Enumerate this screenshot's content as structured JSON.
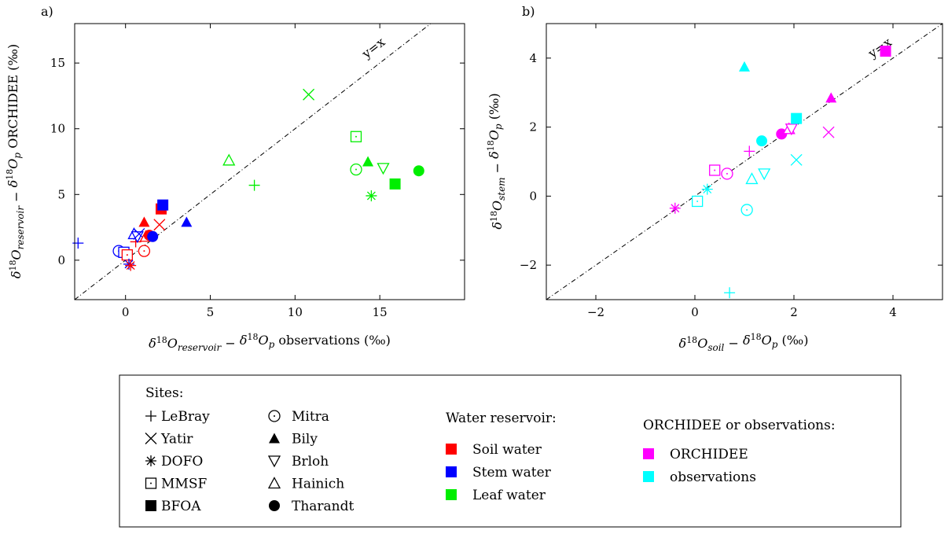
{
  "colors": {
    "soil": "#ff0000",
    "stem": "#0000ff",
    "leaf": "#00ee00",
    "orchidee": "#ff00ff",
    "observations": "#00ffff"
  },
  "legend": {
    "sites_title": "Sites:",
    "sites": [
      {
        "name": "LeBray",
        "marker": "plus"
      },
      {
        "name": "Yatir",
        "marker": "cross"
      },
      {
        "name": "DOFO",
        "marker": "star"
      },
      {
        "name": "MMSF",
        "marker": "square-dot"
      },
      {
        "name": "BFOA",
        "marker": "square-filled"
      },
      {
        "name": "Mitra",
        "marker": "circle-dot"
      },
      {
        "name": "Bily",
        "marker": "triangle-filled"
      },
      {
        "name": "Brloh",
        "marker": "triangle-down-open"
      },
      {
        "name": "Hainich",
        "marker": "triangle-open"
      },
      {
        "name": "Tharandt",
        "marker": "circle-filled"
      }
    ],
    "reservoir_title": "Water reservoir:",
    "reservoirs": [
      {
        "label": "Soil water",
        "color": "#ff0000"
      },
      {
        "label": "Stem water",
        "color": "#0000ff"
      },
      {
        "label": "Leaf water",
        "color": "#00ee00"
      }
    ],
    "source_title": "ORCHIDEE or observations:",
    "sources": [
      {
        "label": "ORCHIDEE",
        "color": "#ff00ff"
      },
      {
        "label": "observations",
        "color": "#00ffff"
      }
    ]
  },
  "chart_data": [
    {
      "panel": "a)",
      "type": "scatter",
      "xlabel": "δ18Oreservoir − δ18Op observations (‰)",
      "ylabel": "δ18Oreservoir − δ18Op ORCHIDEE (‰)",
      "xlim": [
        -3,
        20
      ],
      "ylim": [
        -3,
        18
      ],
      "xticks": [
        0,
        5,
        10,
        15
      ],
      "yticks": [
        0,
        5,
        10,
        15
      ],
      "xtick_labels": [
        "0",
        "5",
        "10",
        "15"
      ],
      "ytick_labels": [
        "0",
        "5",
        "10",
        "15"
      ],
      "reference_line_label": "y=x",
      "points": [
        {
          "site": "LeBray",
          "reservoir": "stem",
          "x": -2.8,
          "y": 1.3
        },
        {
          "site": "Mitra",
          "reservoir": "stem",
          "x": -0.4,
          "y": 0.7
        },
        {
          "site": "MMSF",
          "reservoir": "stem",
          "x": -0.1,
          "y": 0.6
        },
        {
          "site": "MMSF",
          "reservoir": "soil",
          "x": 0.1,
          "y": 0.4
        },
        {
          "site": "DOFO",
          "reservoir": "stem",
          "x": 0.2,
          "y": -0.3
        },
        {
          "site": "DOFO",
          "reservoir": "soil",
          "x": 0.3,
          "y": -0.4
        },
        {
          "site": "Hainich",
          "reservoir": "stem",
          "x": 0.5,
          "y": 2.0
        },
        {
          "site": "LeBray",
          "reservoir": "soil",
          "x": 0.6,
          "y": 1.4
        },
        {
          "site": "Brloh",
          "reservoir": "stem",
          "x": 0.7,
          "y": 1.8
        },
        {
          "site": "Yatir",
          "reservoir": "stem",
          "x": 0.8,
          "y": 2.0
        },
        {
          "site": "Mitra",
          "reservoir": "soil",
          "x": 1.1,
          "y": 0.7
        },
        {
          "site": "Bily",
          "reservoir": "soil",
          "x": 1.1,
          "y": 2.9
        },
        {
          "site": "Hainich",
          "reservoir": "soil",
          "x": 1.2,
          "y": 1.8
        },
        {
          "site": "Tharandt",
          "reservoir": "soil",
          "x": 1.4,
          "y": 1.9
        },
        {
          "site": "Tharandt",
          "reservoir": "stem",
          "x": 1.6,
          "y": 1.8
        },
        {
          "site": "Yatir",
          "reservoir": "soil",
          "x": 2.0,
          "y": 2.7
        },
        {
          "site": "BFOA",
          "reservoir": "soil",
          "x": 2.1,
          "y": 3.9
        },
        {
          "site": "BFOA",
          "reservoir": "stem",
          "x": 2.2,
          "y": 4.2
        },
        {
          "site": "Bily",
          "reservoir": "stem",
          "x": 3.6,
          "y": 2.9
        },
        {
          "site": "Hainich",
          "reservoir": "leaf",
          "x": 6.1,
          "y": 7.6
        },
        {
          "site": "LeBray",
          "reservoir": "leaf",
          "x": 7.6,
          "y": 5.7
        },
        {
          "site": "Yatir",
          "reservoir": "leaf",
          "x": 10.8,
          "y": 12.6
        },
        {
          "site": "MMSF",
          "reservoir": "leaf",
          "x": 13.6,
          "y": 9.4
        },
        {
          "site": "Mitra",
          "reservoir": "leaf",
          "x": 13.6,
          "y": 6.9
        },
        {
          "site": "Bily",
          "reservoir": "leaf",
          "x": 14.3,
          "y": 7.5
        },
        {
          "site": "DOFO",
          "reservoir": "leaf",
          "x": 14.5,
          "y": 4.9
        },
        {
          "site": "Brloh",
          "reservoir": "leaf",
          "x": 15.2,
          "y": 7.0
        },
        {
          "site": "BFOA",
          "reservoir": "leaf",
          "x": 15.9,
          "y": 5.8
        },
        {
          "site": "Tharandt",
          "reservoir": "leaf",
          "x": 17.3,
          "y": 6.8
        }
      ]
    },
    {
      "panel": "b)",
      "type": "scatter",
      "xlabel": "δ18Osoil − δ18Op (‰)",
      "ylabel": "δ18Ostem − δ18Op (‰)",
      "xlim": [
        -3,
        5
      ],
      "ylim": [
        -3,
        5
      ],
      "xticks": [
        -2,
        0,
        2,
        4
      ],
      "yticks": [
        -2,
        0,
        2,
        4
      ],
      "xtick_labels": [
        "−2",
        "0",
        "2",
        "4"
      ],
      "ytick_labels": [
        "−2",
        "0",
        "2",
        "4"
      ],
      "reference_line_label": "y=x",
      "points": [
        {
          "site": "DOFO",
          "source": "orchidee",
          "x": -0.4,
          "y": -0.35
        },
        {
          "site": "MMSF",
          "source": "observations",
          "x": 0.05,
          "y": -0.15
        },
        {
          "site": "DOFO",
          "source": "observations",
          "x": 0.25,
          "y": 0.2
        },
        {
          "site": "MMSF",
          "source": "orchidee",
          "x": 0.4,
          "y": 0.75
        },
        {
          "site": "Mitra",
          "source": "orchidee",
          "x": 0.65,
          "y": 0.65
        },
        {
          "site": "LeBray",
          "source": "observations",
          "x": 0.7,
          "y": -2.8
        },
        {
          "site": "Mitra",
          "source": "observations",
          "x": 1.05,
          "y": -0.4
        },
        {
          "site": "LeBray",
          "source": "orchidee",
          "x": 1.1,
          "y": 1.3
        },
        {
          "site": "Hainich",
          "source": "observations",
          "x": 1.15,
          "y": 0.5
        },
        {
          "site": "Tharandt",
          "source": "observations",
          "x": 1.35,
          "y": 1.6
        },
        {
          "site": "Brloh",
          "source": "observations",
          "x": 1.4,
          "y": 0.65
        },
        {
          "site": "Tharandt",
          "source": "orchidee",
          "x": 1.75,
          "y": 1.8
        },
        {
          "site": "Hainich",
          "source": "orchidee",
          "x": 1.9,
          "y": 1.95
        },
        {
          "site": "Brloh",
          "source": "orchidee",
          "x": 1.95,
          "y": 1.95
        },
        {
          "site": "Yatir",
          "source": "observations",
          "x": 2.05,
          "y": 1.05
        },
        {
          "site": "BFOA",
          "source": "observations",
          "x": 2.05,
          "y": 2.25
        },
        {
          "site": "Yatir",
          "source": "orchidee",
          "x": 2.7,
          "y": 1.85
        },
        {
          "site": "Bily",
          "source": "orchidee",
          "x": 2.75,
          "y": 2.85
        },
        {
          "site": "Bily",
          "source": "observations",
          "x": 1.0,
          "y": 3.75
        },
        {
          "site": "BFOA",
          "source": "orchidee",
          "x": 3.85,
          "y": 4.2
        }
      ]
    }
  ]
}
